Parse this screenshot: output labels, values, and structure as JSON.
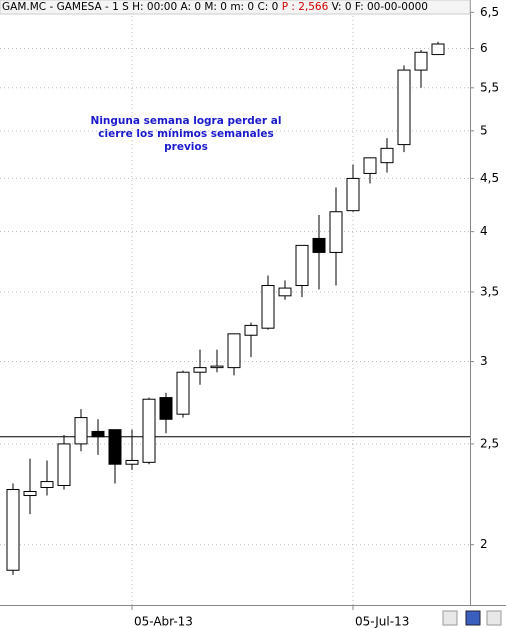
{
  "header": {
    "info": "GAM.MC - GAMESA - 1 S  H: 00:00  A: 0  M: 0  m: 0  C: 0",
    "price": "P : 2,566",
    "rest": "V: 0  F: 00-00-0000"
  },
  "chart_data": {
    "type": "candlestick",
    "annotation": [
      "Ninguna semana logra perder al",
      "cierre los mínimos semanales",
      "previos"
    ],
    "categories": [
      null,
      null,
      null,
      null,
      null,
      null,
      null,
      "05-Abr-13",
      null,
      null,
      null,
      null,
      null,
      null,
      null,
      null,
      null,
      null,
      null,
      null,
      "05-Jul-13",
      null,
      null,
      null,
      null,
      null
    ],
    "series": [
      {
        "open": [
          1.89,
          2.23,
          2.27,
          2.28,
          2.5,
          2.57,
          2.58,
          2.39,
          2.4,
          2.77,
          2.67,
          2.93,
          2.96,
          2.96,
          3.18,
          3.23,
          3.47,
          3.55,
          3.94,
          3.82,
          4.19,
          4.55,
          4.66,
          4.85,
          5.72,
          5.92
        ],
        "high": [
          2.29,
          2.42,
          2.41,
          2.55,
          2.7,
          2.64,
          2.58,
          2.58,
          2.77,
          2.8,
          2.94,
          3.08,
          3.08,
          3.19,
          3.27,
          3.63,
          3.59,
          3.88,
          4.15,
          4.41,
          4.64,
          4.71,
          4.92,
          5.78,
          5.98,
          6.09
        ],
        "low": [
          1.87,
          2.14,
          2.23,
          2.26,
          2.46,
          2.44,
          2.29,
          2.36,
          2.39,
          2.56,
          2.65,
          2.85,
          2.93,
          2.91,
          3.03,
          3.22,
          3.44,
          3.46,
          3.52,
          3.55,
          4.18,
          4.45,
          4.56,
          4.77,
          5.5,
          5.92
        ],
        "close": [
          2.26,
          2.25,
          2.3,
          2.5,
          2.65,
          2.54,
          2.39,
          2.41,
          2.76,
          2.64,
          2.93,
          2.96,
          2.97,
          3.19,
          3.25,
          3.55,
          3.53,
          3.88,
          3.82,
          4.18,
          4.5,
          4.71,
          4.81,
          5.72,
          5.95,
          6.06
        ]
      }
    ],
    "up_color": "#ffffff",
    "down_color": "#000000",
    "log_scale": true,
    "ylim": [
      1.75,
      6.68
    ],
    "yticks": [
      2,
      {
        "value": 2.5,
        "label": "2,5"
      },
      3,
      {
        "value": 3.5,
        "label": "3,5"
      },
      4,
      {
        "value": 4.5,
        "label": "4,5"
      },
      5,
      {
        "value": 5.5,
        "label": "5,5"
      },
      6,
      {
        "value": 6.5,
        "label": "6,5"
      }
    ],
    "hline": 2.54,
    "grid": true
  }
}
